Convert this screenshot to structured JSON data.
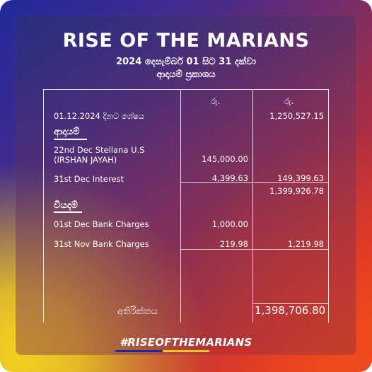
{
  "header": {
    "title": "RISE OF THE MARIANS",
    "subtitle_line1": "2024 දෙසැම්බර් 01 සිට 31 දක්වා",
    "subtitle_line2": "ආදායම් ප්‍රකාශය"
  },
  "statement": {
    "currency_col1": "රු.",
    "currency_col2": "රු.",
    "opening_label": "01.12.2024 දිනට ශේෂය",
    "opening_value": "1,250,527.15",
    "income_heading": "ආදායම්",
    "income_items": [
      {
        "label_line1": "22nd Dec Stellana U.S",
        "label_line2": "(IRSHAN JAYAH)",
        "amount": "145,000.00"
      },
      {
        "label_line1": "31st Dec Interest",
        "amount": "4,399.63"
      }
    ],
    "income_total": "149,399.63",
    "subtotal": "1,399,926.78",
    "expense_heading": "වියදම්",
    "expense_items": [
      {
        "label": "01st Dec Bank Charges",
        "amount": "1,000.00"
      },
      {
        "label": "31st Nov Bank Charges",
        "amount": "219.98"
      }
    ],
    "expense_total": "1,219.98",
    "balance_label": "අතිරික්තය",
    "balance_value": "1,398,706.80"
  },
  "footer": {
    "hashtag": "#RISEOFTHEMARIANS",
    "stripe_colors": [
      "#1c2a9c",
      "#f2c31a",
      "#e0261f"
    ]
  }
}
